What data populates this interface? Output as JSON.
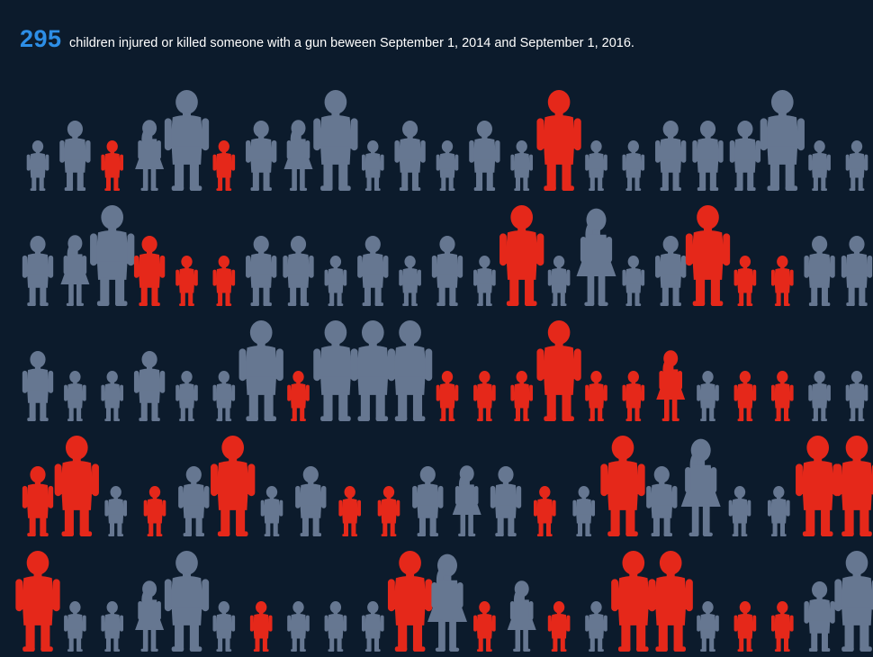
{
  "header": {
    "count": "295",
    "text": "children injured or killed someone with a gun beween September 1, 2014 and September 1, 2016."
  },
  "colors": {
    "background": "#0c1b2c",
    "count": "#2d8ee6",
    "highlight": "#e5281a",
    "default": "#667791"
  },
  "chart_data": {
    "type": "pictogram",
    "total_children": 295,
    "legend": [],
    "rows": [
      [
        "small",
        "medium",
        "small",
        "girl",
        "tall",
        "small",
        "medium",
        "girl",
        "tall",
        "small",
        "medium",
        "small",
        "medium",
        "small",
        "tall",
        "small",
        "small",
        "medium",
        "medium",
        "medium",
        "tall",
        "small",
        "small"
      ],
      [
        "medium",
        "girl",
        "tall",
        "medium",
        "small",
        "small",
        "medium",
        "medium",
        "small",
        "medium",
        "small",
        "medium",
        "small",
        "tall",
        "small",
        "girl_tall",
        "small",
        "medium",
        "tall",
        "small",
        "small",
        "medium",
        "medium"
      ],
      [
        "medium",
        "small",
        "small",
        "medium",
        "small",
        "small",
        "tall",
        "small",
        "tall",
        "tall",
        "tall",
        "small",
        "small",
        "small",
        "tall",
        "small",
        "small",
        "girl",
        "small",
        "small",
        "small",
        "small",
        "small"
      ],
      [
        "medium",
        "tall",
        "small",
        "small",
        "medium",
        "tall",
        "small",
        "medium",
        "small",
        "small",
        "medium",
        "girl",
        "medium",
        "small",
        "small",
        "tall",
        "medium",
        "girl_tall",
        "small",
        "small",
        "tall",
        "tall"
      ],
      [
        "tall",
        "small",
        "small",
        "girl",
        "tall",
        "small",
        "small",
        "small",
        "small",
        "small",
        "tall",
        "girl_tall",
        "small",
        "girl",
        "small",
        "small",
        "tall",
        "tall",
        "small",
        "small",
        "small",
        "medium",
        "tall"
      ]
    ],
    "highlighted": [
      [
        false,
        false,
        true,
        false,
        false,
        true,
        false,
        false,
        false,
        false,
        false,
        false,
        false,
        false,
        true,
        false,
        false,
        false,
        false,
        false,
        false,
        false,
        false
      ],
      [
        false,
        false,
        false,
        true,
        true,
        true,
        false,
        false,
        false,
        false,
        false,
        false,
        false,
        true,
        false,
        false,
        false,
        false,
        true,
        true,
        true,
        false,
        false
      ],
      [
        false,
        false,
        false,
        false,
        false,
        false,
        false,
        true,
        false,
        false,
        false,
        true,
        true,
        true,
        true,
        true,
        true,
        true,
        false,
        true,
        true,
        false,
        false
      ],
      [
        true,
        true,
        false,
        true,
        false,
        true,
        false,
        false,
        true,
        true,
        false,
        false,
        false,
        true,
        false,
        true,
        false,
        false,
        false,
        false,
        true,
        true
      ],
      [
        true,
        false,
        false,
        false,
        false,
        false,
        true,
        false,
        false,
        false,
        true,
        false,
        true,
        false,
        true,
        false,
        true,
        true,
        false,
        true,
        true,
        false,
        false
      ]
    ]
  }
}
